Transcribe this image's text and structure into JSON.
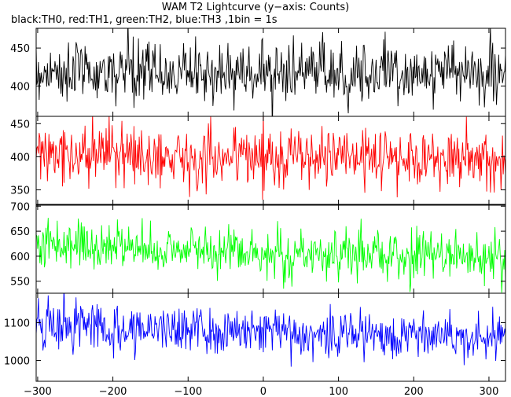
{
  "chart_data": {
    "type": "line",
    "title": "WAM T2 Lightcurve (y−axis: Counts)",
    "subtitle": "black:TH0, red:TH1, green:TH2, blue:TH3 ,1bin = 1s",
    "xlim": [
      -302,
      322
    ],
    "xticks": [
      -300,
      -200,
      -100,
      0,
      100,
      200,
      300
    ],
    "xtick_labels": [
      "−300",
      "−200",
      "−100",
      "0",
      "100",
      "200",
      "300"
    ],
    "x_bin_seconds": 1,
    "panels": [
      {
        "series": "TH0",
        "color": "#000000",
        "ylim": [
          360,
          476
        ],
        "yticks": [
          400,
          450
        ],
        "mean": 418,
        "noise": 20,
        "trend": [
          [
            -302,
            0
          ],
          [
            322,
            0
          ]
        ]
      },
      {
        "series": "TH1",
        "color": "#ff0000",
        "ylim": [
          328,
          461
        ],
        "yticks": [
          350,
          400,
          450
        ],
        "mean": 398,
        "noise": 22,
        "trend": [
          [
            -302,
            4
          ],
          [
            322,
            0
          ]
        ]
      },
      {
        "series": "TH2",
        "color": "#00ff00",
        "ylim": [
          526,
          702
        ],
        "yticks": [
          550,
          600,
          650,
          700
        ],
        "mean": 608,
        "noise": 25,
        "trend": [
          [
            -302,
            15
          ],
          [
            -100,
            5
          ],
          [
            100,
            -5
          ],
          [
            322,
            -10
          ]
        ]
      },
      {
        "series": "TH3",
        "color": "#0000ff",
        "ylim": [
          945,
          1178
        ],
        "yticks": [
          1000,
          1100
        ],
        "mean": 1075,
        "noise": 32,
        "trend": [
          [
            -302,
            20
          ],
          [
            0,
            0
          ],
          [
            322,
            -10
          ]
        ]
      }
    ]
  }
}
